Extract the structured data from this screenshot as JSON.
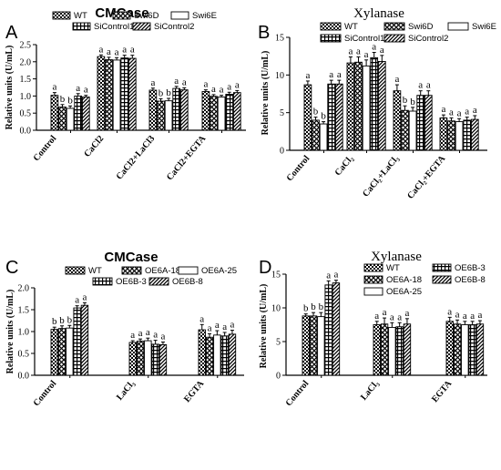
{
  "chart_data": [
    {
      "type": "bar",
      "panel_letter": "A",
      "title": "CMCase",
      "ylabel": "Relative units (U/mL)",
      "ylim": [
        0,
        2.5
      ],
      "yticks": [
        "0.0",
        "0.5",
        "1.0",
        "1.5",
        "2.0",
        "2.5"
      ],
      "categories": [
        "Control",
        "CaCl2",
        "CaCl2+LaCl3",
        "CaCl2+EGTA"
      ],
      "series": [
        {
          "name": "WT",
          "pattern": "checker",
          "values": [
            1.02,
            2.15,
            1.17,
            1.13
          ],
          "errors": [
            0.08,
            0.05,
            0.06,
            0.05
          ],
          "labels": [
            "a",
            "a",
            "a",
            "a"
          ]
        },
        {
          "name": "Swi6D",
          "pattern": "cross",
          "values": [
            0.68,
            2.06,
            0.85,
            0.99
          ],
          "errors": [
            0.07,
            0.07,
            0.07,
            0.05
          ],
          "labels": [
            "b",
            "a",
            "b",
            "a"
          ]
        },
        {
          "name": "Swi6E",
          "pattern": "white",
          "values": [
            0.64,
            2.05,
            0.86,
            0.97
          ],
          "errors": [
            0.07,
            0.07,
            0.07,
            0.05
          ],
          "labels": [
            "b",
            "a",
            "b",
            "a"
          ]
        },
        {
          "name": "SiControl1",
          "pattern": "grid",
          "values": [
            1.0,
            2.11,
            1.22,
            1.05
          ],
          "errors": [
            0.07,
            0.08,
            0.06,
            0.06
          ],
          "labels": [
            "a",
            "a",
            "a",
            "a"
          ]
        },
        {
          "name": "SiControl2",
          "pattern": "diag",
          "values": [
            0.97,
            2.1,
            1.18,
            1.1
          ],
          "errors": [
            0.05,
            0.09,
            0.06,
            0.06
          ],
          "labels": [
            "a",
            "a",
            "a",
            "a"
          ]
        }
      ]
    },
    {
      "type": "bar",
      "panel_letter": "B",
      "title": "Xylanase",
      "ylabel": "Relative units (U/mL)",
      "ylim": [
        0,
        15
      ],
      "yticks": [
        "0",
        "5",
        "10",
        "15"
      ],
      "categories": [
        "Control",
        "CaCl₂",
        "CaCl₂+LaCl₃",
        "CaCl₂+EGTA"
      ],
      "series": [
        {
          "name": "WT",
          "pattern": "checker",
          "values": [
            8.7,
            11.6,
            7.9,
            4.3
          ],
          "errors": [
            0.5,
            0.8,
            0.8,
            0.4
          ],
          "labels": [
            "a",
            "a",
            "a",
            "a"
          ]
        },
        {
          "name": "Swi6D",
          "pattern": "cross",
          "values": [
            4.0,
            11.7,
            5.3,
            3.9
          ],
          "errors": [
            0.4,
            0.7,
            0.6,
            0.4
          ],
          "labels": [
            "b",
            "a",
            "b",
            "a"
          ]
        },
        {
          "name": "Swi6E",
          "pattern": "white",
          "values": [
            3.5,
            11.2,
            5.2,
            3.8
          ],
          "errors": [
            0.3,
            0.8,
            0.5,
            0.4
          ],
          "labels": [
            "b",
            "a",
            "b",
            "a"
          ]
        },
        {
          "name": "SiControl1",
          "pattern": "grid",
          "values": [
            8.8,
            12.3,
            7.3,
            4.0
          ],
          "errors": [
            0.5,
            0.7,
            0.6,
            0.4
          ],
          "labels": [
            "a",
            "a",
            "a",
            "a"
          ]
        },
        {
          "name": "SiControl2",
          "pattern": "diag",
          "values": [
            8.8,
            11.8,
            7.3,
            4.1
          ],
          "errors": [
            0.5,
            0.8,
            0.6,
            0.5
          ],
          "labels": [
            "a",
            "a",
            "a",
            "a"
          ]
        }
      ]
    },
    {
      "type": "bar",
      "panel_letter": "C",
      "title": "CMCase",
      "ylabel": "Relative units (U/mL)",
      "ylim": [
        0,
        2.0
      ],
      "yticks": [
        "0.0",
        "0.5",
        "1.0",
        "1.5",
        "2.0"
      ],
      "categories": [
        "Control",
        "LaCl₃",
        "EGTA"
      ],
      "series": [
        {
          "name": "WT",
          "pattern": "checker",
          "values": [
            1.05,
            0.75,
            1.04
          ],
          "errors": [
            0.05,
            0.04,
            0.12
          ],
          "labels": [
            "b",
            "a",
            "a"
          ]
        },
        {
          "name": "OE6A-18",
          "pattern": "cross",
          "values": [
            1.07,
            0.78,
            0.87
          ],
          "errors": [
            0.06,
            0.05,
            0.08
          ],
          "labels": [
            "b",
            "a",
            "a"
          ]
        },
        {
          "name": "OE6A-25",
          "pattern": "white",
          "values": [
            1.08,
            0.79,
            0.92
          ],
          "errors": [
            0.06,
            0.06,
            0.1
          ],
          "labels": [
            "b",
            "a",
            "a"
          ]
        },
        {
          "name": "OE6B-3",
          "pattern": "grid",
          "values": [
            1.54,
            0.71,
            0.9
          ],
          "errors": [
            0.05,
            0.09,
            0.08
          ],
          "labels": [
            "a",
            "a",
            "a"
          ]
        },
        {
          "name": "OE6B-8",
          "pattern": "diag",
          "values": [
            1.6,
            0.7,
            0.94
          ],
          "errors": [
            0.06,
            0.06,
            0.09
          ],
          "labels": [
            "a",
            "a",
            "a"
          ]
        }
      ]
    },
    {
      "type": "bar",
      "panel_letter": "D",
      "title": "Xylanase",
      "ylabel": "Relative units (U/mL)",
      "ylim": [
        0,
        15
      ],
      "yticks": [
        "0",
        "5",
        "10",
        "15"
      ],
      "categories": [
        "Control",
        "LaCl₃",
        "EGTA"
      ],
      "series": [
        {
          "name": "WT",
          "pattern": "checker",
          "values": [
            8.8,
            7.5,
            8.0
          ],
          "errors": [
            0.3,
            0.5,
            0.6
          ],
          "labels": [
            "b",
            "a",
            "a"
          ]
        },
        {
          "name": "OE6A-18",
          "pattern": "cross",
          "values": [
            8.8,
            7.6,
            7.6
          ],
          "errors": [
            0.5,
            0.9,
            0.6
          ],
          "labels": [
            "b",
            "a",
            "a"
          ]
        },
        {
          "name": "OE6A-25",
          "pattern": "white",
          "values": [
            8.7,
            7.1,
            7.5
          ],
          "errors": [
            0.6,
            0.7,
            0.5
          ],
          "labels": [
            "b",
            "a",
            "a"
          ]
        },
        {
          "name": "OE6B-3",
          "pattern": "grid",
          "values": [
            13.4,
            7.2,
            7.5
          ],
          "errors": [
            0.6,
            0.6,
            0.5
          ],
          "labels": [
            "a",
            "a",
            "a"
          ]
        },
        {
          "name": "OE6B-8",
          "pattern": "diag",
          "values": [
            13.7,
            7.6,
            7.6
          ],
          "errors": [
            0.4,
            0.8,
            0.5
          ],
          "labels": [
            "a",
            "a",
            "a"
          ]
        }
      ]
    }
  ]
}
